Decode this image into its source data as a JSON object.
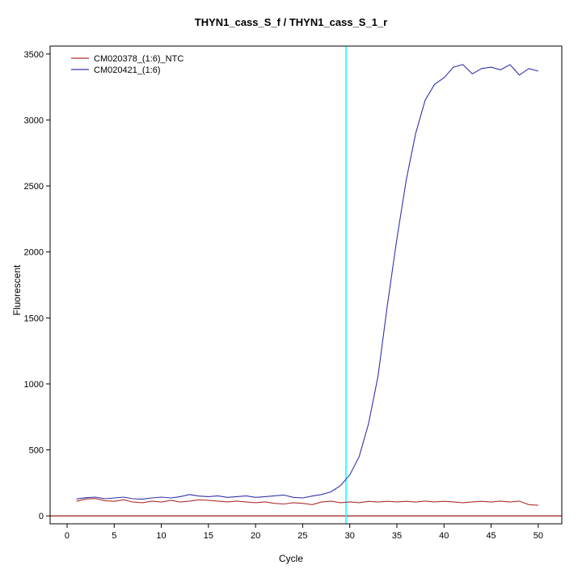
{
  "chart_data": {
    "type": "line",
    "title": "THYN1_cass_S_f / THYN1_cass_S_1_r",
    "xlabel": "Cycle",
    "ylabel": "Fluorescent",
    "xlim": [
      -1.8,
      52.5
    ],
    "ylim": [
      -60,
      3560
    ],
    "x_ticks": [
      0,
      5,
      10,
      15,
      20,
      25,
      30,
      35,
      40,
      45,
      50
    ],
    "y_ticks": [
      0,
      500,
      1000,
      1500,
      2000,
      2500,
      3000,
      3500
    ],
    "grid": false,
    "background_color": "#ffffff",
    "axis_color": "#000000",
    "legend_position": "top-left",
    "threshold_cycle_line": {
      "x": 29.6,
      "color": "#00ffff"
    },
    "baseline": {
      "y": 0,
      "color": "#8b0000"
    },
    "x": [
      1,
      2,
      3,
      4,
      5,
      6,
      7,
      8,
      9,
      10,
      11,
      12,
      13,
      14,
      15,
      16,
      17,
      18,
      19,
      20,
      21,
      22,
      23,
      24,
      25,
      26,
      27,
      28,
      29,
      30,
      31,
      32,
      33,
      34,
      35,
      36,
      37,
      38,
      39,
      40,
      41,
      42,
      43,
      44,
      45,
      46,
      47,
      48,
      49,
      50
    ],
    "series": [
      {
        "name": "CM020378_(1:6)_NTC",
        "color": "#b03030",
        "values": [
          110,
          128,
          132,
          115,
          110,
          122,
          105,
          100,
          112,
          105,
          118,
          105,
          112,
          122,
          118,
          112,
          106,
          112,
          106,
          100,
          106,
          95,
          90,
          100,
          95,
          85,
          105,
          112,
          100,
          106,
          100,
          110,
          105,
          110,
          106,
          110,
          105,
          112,
          106,
          110,
          106,
          100,
          106,
          110,
          105,
          112,
          105,
          112,
          85,
          80
        ]
      },
      {
        "name": "CM020421_(1:6)",
        "color": "#3333aa",
        "values": [
          128,
          138,
          142,
          130,
          136,
          142,
          130,
          126,
          136,
          142,
          136,
          146,
          162,
          150,
          146,
          152,
          140,
          146,
          152,
          140,
          146,
          152,
          158,
          140,
          136,
          150,
          162,
          182,
          228,
          310,
          450,
          700,
          1060,
          1600,
          2100,
          2550,
          2900,
          3150,
          3270,
          3320,
          3400,
          3420,
          3350,
          3390,
          3400,
          3380,
          3420,
          3340,
          3390,
          3370
        ]
      }
    ]
  }
}
